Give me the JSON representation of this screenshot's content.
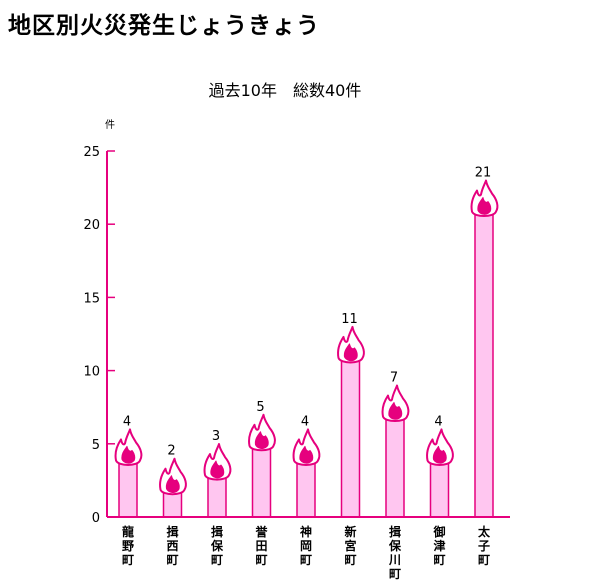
{
  "title": "地区別火災発生じょうきょう",
  "chart_data": {
    "type": "bar",
    "subtitle": "過去10年　総数40件",
    "ylabel": "件",
    "ylim": [
      0,
      25
    ],
    "yticks": [
      "0",
      "5",
      "10",
      "15",
      "20",
      "25"
    ],
    "categories": [
      "龍野町",
      "揖西町",
      "揖保町",
      "誉田町",
      "神岡町",
      "新宮町",
      "揖保川町",
      "御津町",
      "太子町"
    ],
    "values": [
      4,
      2,
      3,
      5,
      4,
      11,
      7,
      4,
      21
    ],
    "data_labels": [
      "4",
      "2",
      "3",
      "5",
      "4",
      "11",
      "7",
      "4",
      "21"
    ],
    "colors": {
      "axis": "#e6007e",
      "bar_fill": "#ffc6f0",
      "bar_stroke": "#e6007e",
      "flame": "#e6007e"
    },
    "grid": false,
    "legend": "none"
  }
}
